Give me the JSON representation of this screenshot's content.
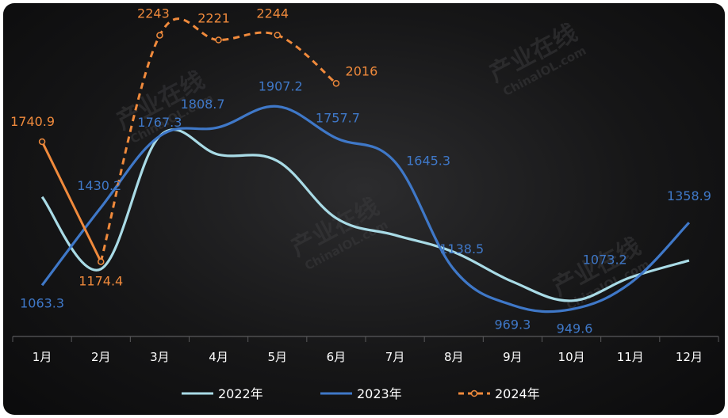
{
  "chart_data": {
    "type": "line",
    "title": "",
    "xlabel": "",
    "ylabel": "",
    "categories": [
      "1月",
      "2月",
      "3月",
      "4月",
      "5月",
      "6月",
      "7月",
      "8月",
      "9月",
      "10月",
      "11月",
      "12月"
    ],
    "series": [
      {
        "name": "2022年",
        "color": "#a9dbe6",
        "style": "solid",
        "values": [
          1480,
          1140,
          1767.3,
          1680,
          1650,
          1380,
          1300,
          1220,
          1080,
          990,
          1100,
          1180
        ],
        "labels": [
          null,
          null,
          null,
          null,
          null,
          null,
          null,
          null,
          null,
          null,
          null,
          null
        ]
      },
      {
        "name": "2023年",
        "color": "#3f78c8",
        "style": "solid",
        "values": [
          1063.3,
          1430.2,
          1767.3,
          1808.7,
          1907.2,
          1757.7,
          1645.3,
          1138.5,
          969.3,
          949.6,
          1073.2,
          1358.9
        ],
        "labels": [
          "1063.3",
          "1430.2",
          "1767.3",
          "1808.7",
          "1907.2",
          "1757.7",
          "1645.3",
          "1138.5",
          "969.3",
          "949.6",
          "1073.2",
          "1358.9"
        ]
      },
      {
        "name": "2024年",
        "color": "#f08a3c",
        "style": "mixed",
        "values": [
          1740.9,
          1174.4,
          2243,
          2221,
          2244,
          2016,
          null,
          null,
          null,
          null,
          null,
          null
        ],
        "labels": [
          "1740.9",
          "1174.4",
          "2243",
          "2221",
          "2244",
          "2016",
          null,
          null,
          null,
          null,
          null,
          null
        ]
      }
    ],
    "ylim": [
      900,
      2320
    ],
    "grid": false,
    "legend_position": "bottom"
  },
  "watermark": {
    "text": "产业在线",
    "subtext": "ChinaIOL.com"
  }
}
